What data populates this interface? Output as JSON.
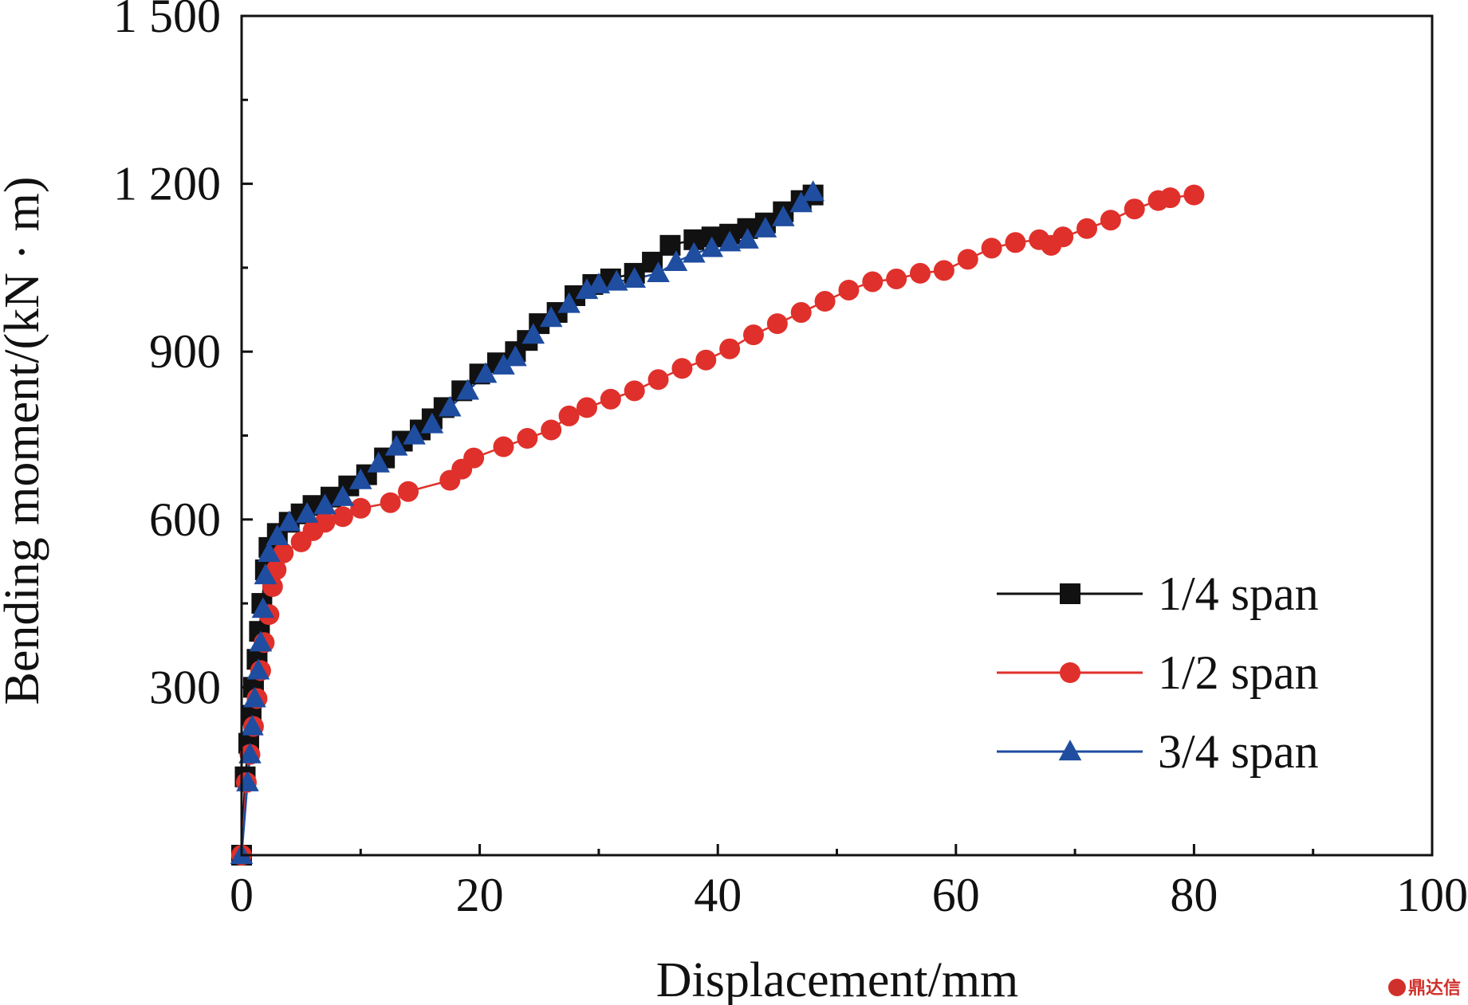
{
  "chart_data": {
    "type": "line",
    "xlabel": "Displacement/mm",
    "ylabel": "Bending moment/(kN · m)",
    "xlim": [
      0,
      100
    ],
    "ylim": [
      0,
      1500
    ],
    "xticks": [
      0,
      20,
      40,
      60,
      80,
      100
    ],
    "xtick_labels": [
      "0",
      "20",
      "40",
      "60",
      "80",
      "100"
    ],
    "yticks": [
      300,
      600,
      900,
      1200,
      1500
    ],
    "ytick_labels": [
      "300",
      "600",
      "900",
      "1 200",
      "1 500"
    ],
    "grid": false,
    "legend_position": "lower-right",
    "series": [
      {
        "name": "1/4 span",
        "color": "#111111",
        "marker": "square",
        "points": [
          [
            0,
            0
          ],
          [
            0.3,
            140
          ],
          [
            0.6,
            200
          ],
          [
            0.8,
            250
          ],
          [
            1,
            300
          ],
          [
            1.3,
            350
          ],
          [
            1.5,
            400
          ],
          [
            1.7,
            450
          ],
          [
            2,
            510
          ],
          [
            2.3,
            550
          ],
          [
            3,
            575
          ],
          [
            4,
            595
          ],
          [
            5,
            610
          ],
          [
            6,
            625
          ],
          [
            7.5,
            640
          ],
          [
            9,
            660
          ],
          [
            10.5,
            680
          ],
          [
            12,
            710
          ],
          [
            13.5,
            740
          ],
          [
            15,
            760
          ],
          [
            16,
            780
          ],
          [
            17,
            800
          ],
          [
            18.5,
            830
          ],
          [
            20,
            860
          ],
          [
            21.5,
            880
          ],
          [
            23,
            900
          ],
          [
            24,
            920
          ],
          [
            25,
            950
          ],
          [
            26.5,
            970
          ],
          [
            28,
            1000
          ],
          [
            29.5,
            1020
          ],
          [
            31,
            1030
          ],
          [
            33,
            1040
          ],
          [
            34.5,
            1060
          ],
          [
            36,
            1090
          ],
          [
            38,
            1100
          ],
          [
            39.5,
            1105
          ],
          [
            41,
            1110
          ],
          [
            42.5,
            1120
          ],
          [
            44,
            1130
          ],
          [
            45.5,
            1150
          ],
          [
            47,
            1170
          ],
          [
            48,
            1180
          ]
        ]
      },
      {
        "name": "1/2 span",
        "color": "#e0302b",
        "marker": "circle",
        "points": [
          [
            0,
            0
          ],
          [
            0.4,
            130
          ],
          [
            0.7,
            180
          ],
          [
            1,
            230
          ],
          [
            1.3,
            280
          ],
          [
            1.6,
            330
          ],
          [
            1.9,
            380
          ],
          [
            2.3,
            430
          ],
          [
            2.6,
            480
          ],
          [
            2.9,
            510
          ],
          [
            3.5,
            540
          ],
          [
            5,
            560
          ],
          [
            6,
            580
          ],
          [
            7,
            595
          ],
          [
            8.5,
            605
          ],
          [
            10,
            620
          ],
          [
            12.5,
            630
          ],
          [
            14,
            650
          ],
          [
            17.5,
            670
          ],
          [
            18.5,
            690
          ],
          [
            19.5,
            710
          ],
          [
            22,
            730
          ],
          [
            24,
            745
          ],
          [
            26,
            760
          ],
          [
            27.5,
            785
          ],
          [
            29,
            800
          ],
          [
            31,
            815
          ],
          [
            33,
            830
          ],
          [
            35,
            850
          ],
          [
            37,
            870
          ],
          [
            39,
            885
          ],
          [
            41,
            905
          ],
          [
            43,
            930
          ],
          [
            45,
            950
          ],
          [
            47,
            970
          ],
          [
            49,
            990
          ],
          [
            51,
            1010
          ],
          [
            53,
            1025
          ],
          [
            55,
            1030
          ],
          [
            57,
            1040
          ],
          [
            59,
            1045
          ],
          [
            61,
            1065
          ],
          [
            63,
            1085
          ],
          [
            65,
            1095
          ],
          [
            67,
            1100
          ],
          [
            68,
            1090
          ],
          [
            69,
            1105
          ],
          [
            71,
            1120
          ],
          [
            73,
            1135
          ],
          [
            75,
            1155
          ],
          [
            77,
            1170
          ],
          [
            78,
            1175
          ],
          [
            80,
            1180
          ]
        ]
      },
      {
        "name": "3/4 span",
        "color": "#1f4da0",
        "marker": "triangle",
        "points": [
          [
            0,
            0
          ],
          [
            0.5,
            130
          ],
          [
            0.7,
            180
          ],
          [
            0.9,
            230
          ],
          [
            1.1,
            280
          ],
          [
            1.4,
            330
          ],
          [
            1.6,
            380
          ],
          [
            1.8,
            440
          ],
          [
            2,
            500
          ],
          [
            2.3,
            540
          ],
          [
            3,
            570
          ],
          [
            4,
            595
          ],
          [
            5.5,
            610
          ],
          [
            7,
            625
          ],
          [
            8.5,
            640
          ],
          [
            10,
            670
          ],
          [
            11.5,
            700
          ],
          [
            13,
            730
          ],
          [
            14.5,
            750
          ],
          [
            16,
            770
          ],
          [
            17.5,
            800
          ],
          [
            19,
            830
          ],
          [
            20.5,
            860
          ],
          [
            22,
            875
          ],
          [
            23,
            890
          ],
          [
            24.5,
            930
          ],
          [
            26,
            960
          ],
          [
            27.5,
            985
          ],
          [
            29,
            1010
          ],
          [
            30,
            1020
          ],
          [
            31.5,
            1025
          ],
          [
            33,
            1030
          ],
          [
            35,
            1040
          ],
          [
            36.5,
            1060
          ],
          [
            38,
            1075
          ],
          [
            39.5,
            1085
          ],
          [
            41,
            1095
          ],
          [
            42.5,
            1100
          ],
          [
            44,
            1120
          ],
          [
            45.5,
            1140
          ],
          [
            47,
            1165
          ],
          [
            48,
            1185
          ]
        ]
      }
    ]
  },
  "watermark_text": "鼎达信"
}
